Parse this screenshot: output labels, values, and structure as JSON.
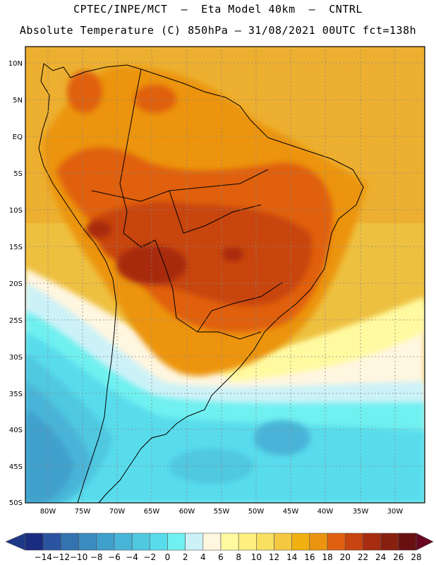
{
  "title_line1": "CPTEC/INPE/MCT  –  Eta Model 40km  –  CNTRL",
  "title_line2": "Absolute Temperature (C) 850hPa – 31/08/2021 00UTC fct=138h",
  "lat_labels": [
    "10N",
    "5N",
    "EQ",
    "5S",
    "10S",
    "15S",
    "20S",
    "25S",
    "30S",
    "35S",
    "40S",
    "45S",
    "50S"
  ],
  "lon_labels": [
    "80W",
    "75W",
    "70W",
    "65W",
    "60W",
    "55W",
    "50W",
    "45W",
    "40W",
    "35W",
    "30W"
  ],
  "colorbar": {
    "labels": [
      "-14",
      "-12",
      "-10",
      "-8",
      "-6",
      "-4",
      "-2",
      "0",
      "2",
      "4",
      "6",
      "8",
      "10",
      "12",
      "14",
      "16",
      "18",
      "20",
      "22",
      "24",
      "26",
      "28"
    ],
    "colors": [
      "#1a2c80",
      "#2b54a0",
      "#3373b0",
      "#3a8cc0",
      "#40a0cc",
      "#48b4d8",
      "#50c8e0",
      "#58dcec",
      "#70f0f0",
      "#ccf2f8",
      "#fff6e0",
      "#fffaa0",
      "#fff080",
      "#f8e060",
      "#f4c840",
      "#f0b010",
      "#ec9410",
      "#e06010",
      "#c84410",
      "#a82c10",
      "#882010",
      "#681010"
    ]
  },
  "map_colors": {
    "ocean_warm": "#eec040",
    "ocean_orange": "#eca020",
    "land_orange": "#ec9410",
    "land_hot": "#e06010",
    "land_hotter": "#c84410",
    "land_hottest": "#a82c10",
    "pale_yellow": "#fff080",
    "cream": "#fff6e0",
    "pale_blue": "#ccf2f8",
    "cyan": "#70f0f0",
    "teal": "#58dcec",
    "blue_light": "#50c8e0",
    "blue_mid": "#48b4d8",
    "blue_dark": "#40a0cc"
  }
}
